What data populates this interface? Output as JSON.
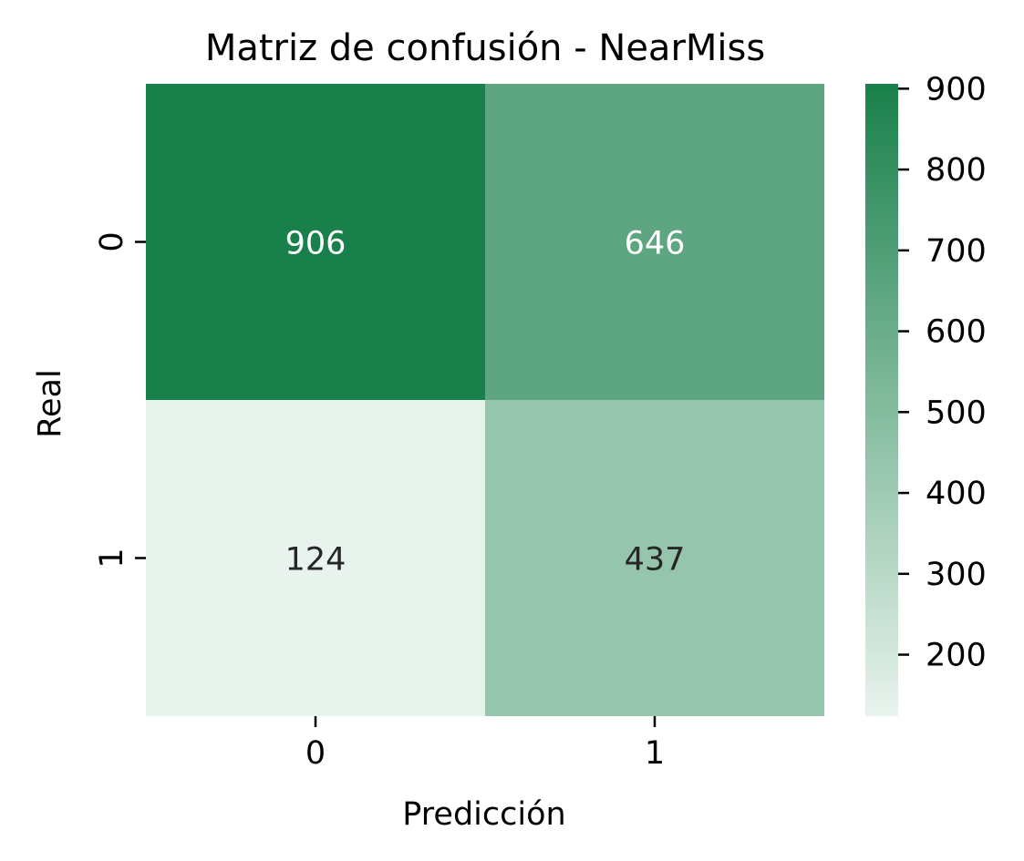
{
  "chart_data": {
    "type": "heatmap",
    "title": "Matriz de confusión - NearMiss",
    "xlabel": "Predicción",
    "ylabel": "Real",
    "x_categories": [
      "0",
      "1"
    ],
    "y_categories": [
      "0",
      "1"
    ],
    "values": [
      [
        906,
        646
      ],
      [
        124,
        437
      ]
    ],
    "colorbar": {
      "min": 124,
      "max": 906,
      "ticks": [
        200,
        300,
        400,
        500,
        600,
        700,
        800,
        900
      ]
    },
    "colors": {
      "low": "#e8f3ed",
      "high": "#19804b",
      "text_on_dark": "#ffffff",
      "text_on_light": "#262626"
    }
  }
}
